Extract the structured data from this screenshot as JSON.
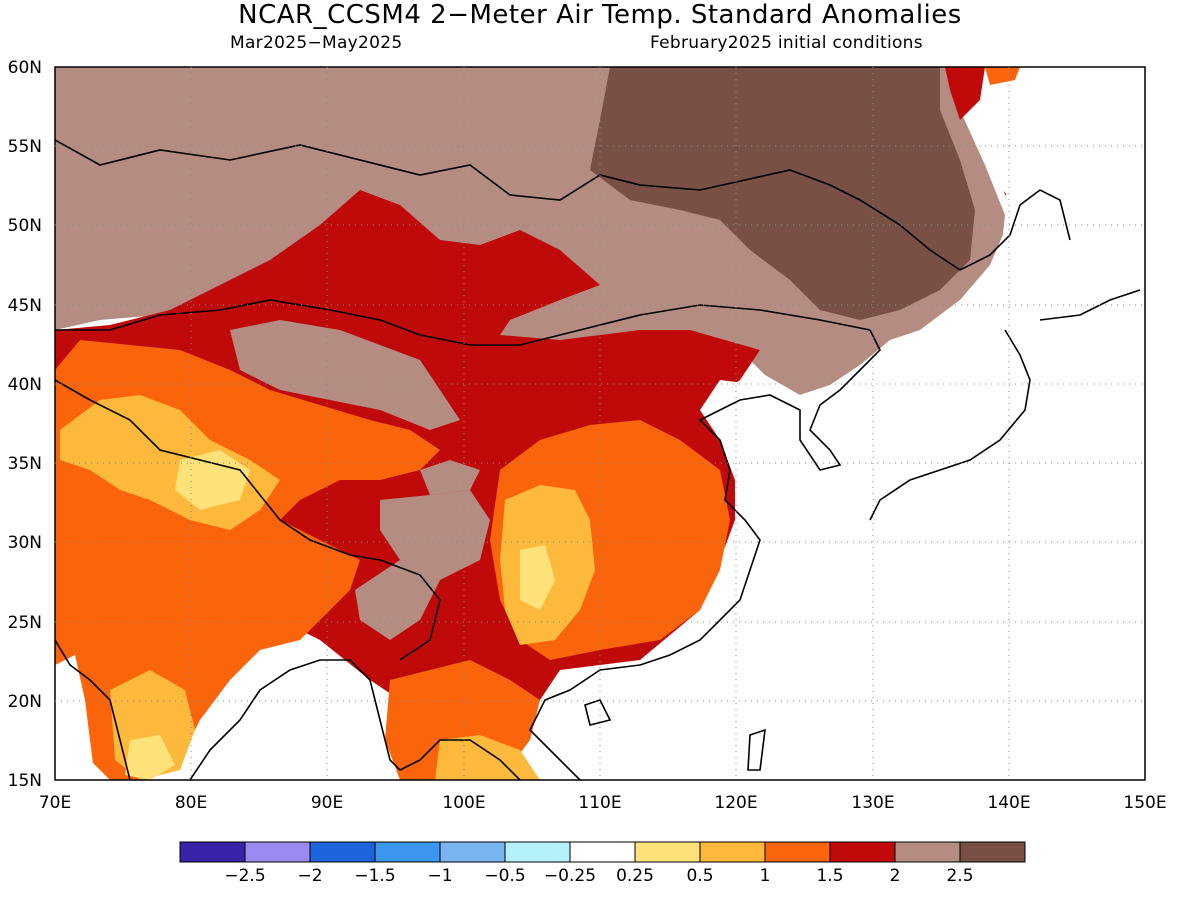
{
  "title": "NCAR_CCSM4 2−Meter Air Temp. Standard Anomalies",
  "subtitle_left": "Mar2025−May2025",
  "subtitle_right": "February2025 initial conditions",
  "map": {
    "lon_range": [
      70,
      150
    ],
    "lat_range": [
      15,
      60
    ],
    "lon_ticks": [
      "70E",
      "80E",
      "90E",
      "100E",
      "110E",
      "120E",
      "130E",
      "140E",
      "150E"
    ],
    "lat_ticks": [
      "15N",
      "20N",
      "25N",
      "30N",
      "35N",
      "40N",
      "45N",
      "50N",
      "55N",
      "60N"
    ],
    "grid": "dotted"
  },
  "colorbar": {
    "colors": [
      "#3a22a8",
      "#9b8bf0",
      "#1e64dc",
      "#3c96f0",
      "#78b4f0",
      "#b4f0fa",
      "#ffffff",
      "#fde27a",
      "#fdb93c",
      "#fa640a",
      "#c00a0a",
      "#b48c82",
      "#785046"
    ],
    "labels": [
      "−2.5",
      "−2",
      "−1.5",
      "−1",
      "−0.5",
      "−0.25",
      "0.25",
      "0.5",
      "1",
      "1.5",
      "2",
      "2.5"
    ]
  }
}
